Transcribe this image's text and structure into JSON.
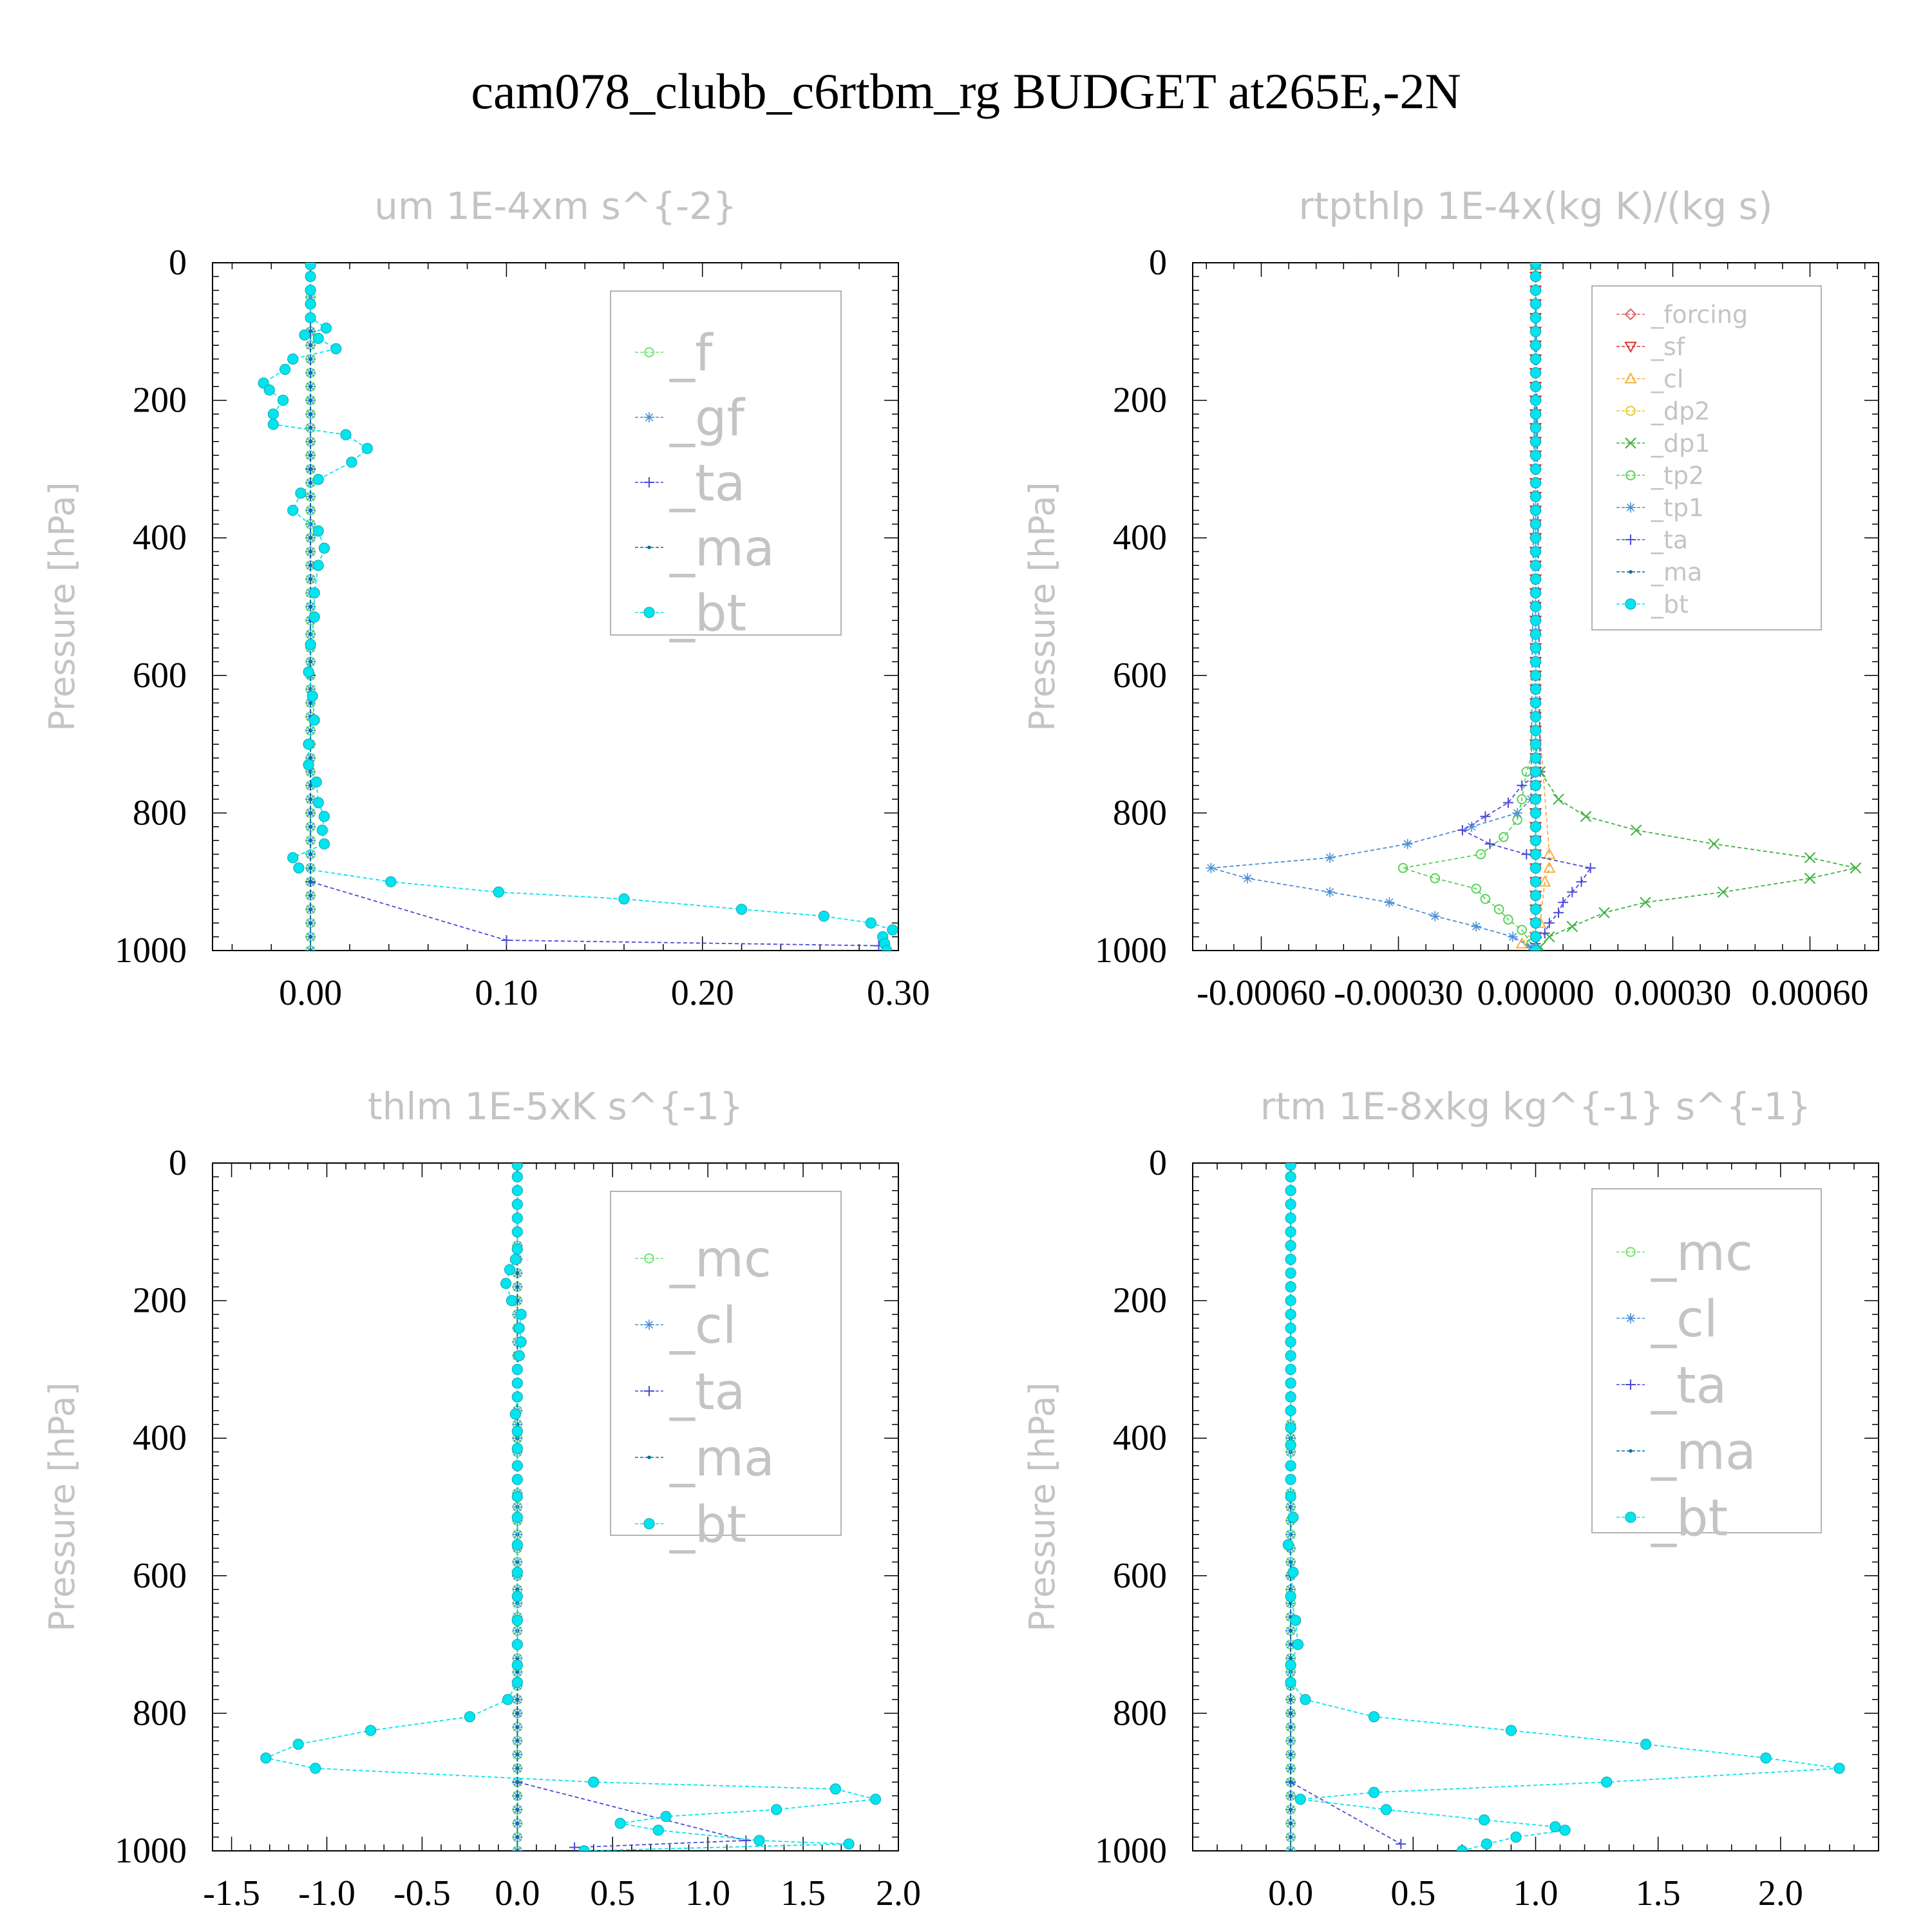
{
  "figure_title": "cam078_clubb_c6rtbm_rg  BUDGET at265E,-2N",
  "chart_data": [
    {
      "type": "line",
      "title": "um  1E-4xm s^{-2}",
      "ylabel": "Pressure [hPa]",
      "xlim": [
        -0.05,
        0.3
      ],
      "ylim": [
        1000,
        0
      ],
      "y_inverted": true,
      "xticks": [
        0.0,
        0.1,
        0.2,
        0.3
      ],
      "xtick_labels": [
        "0.00",
        "0.10",
        "0.20",
        "0.30"
      ],
      "yticks": [
        0,
        200,
        400,
        600,
        800,
        1000
      ],
      "ytick_labels": [
        "0",
        "200",
        "400",
        "600",
        "800",
        "1000"
      ],
      "legend_position": "top-right",
      "series": [
        {
          "name": "_f",
          "color": "#6fe36f",
          "marker": "circle-open",
          "pressure": [
            3,
            50,
            100,
            200,
            300,
            400,
            500,
            600,
            700,
            800,
            900,
            1000
          ],
          "values": [
            0,
            0,
            0,
            0,
            0,
            0,
            0,
            0,
            0,
            0,
            0,
            0
          ]
        },
        {
          "name": "_gf",
          "color": "#4a8fd6",
          "marker": "asterisk",
          "pressure": [
            3,
            50,
            100,
            200,
            300,
            400,
            500,
            600,
            700,
            800,
            900,
            1000
          ],
          "values": [
            0,
            0,
            0,
            0,
            0,
            0,
            0,
            0,
            0,
            0,
            0,
            0
          ]
        },
        {
          "name": "_ta",
          "color": "#4a4ad6",
          "marker": "plus",
          "pressure": [
            3,
            100,
            300,
            600,
            900,
            985,
            993
          ],
          "values": [
            0,
            0,
            0,
            0,
            0,
            0.1,
            0.29
          ]
        },
        {
          "name": "_ma",
          "color": "#0070a0",
          "marker": "dot",
          "pressure": [
            3,
            100,
            300,
            600,
            900,
            1000
          ],
          "values": [
            0,
            0,
            0,
            0,
            0,
            0
          ]
        },
        {
          "name": "_bt",
          "color": "#00e5ee",
          "marker": "circle-filled",
          "pressure": [
            3,
            20,
            40,
            60,
            80,
            95,
            105,
            110,
            125,
            140,
            155,
            175,
            185,
            200,
            220,
            235,
            250,
            270,
            290,
            315,
            335,
            360,
            390,
            415,
            440,
            480,
            515,
            555,
            595,
            630,
            665,
            700,
            730,
            755,
            785,
            805,
            825,
            845,
            865,
            880,
            900,
            915,
            925,
            940,
            950,
            960,
            970,
            980,
            990,
            1000
          ],
          "values": [
            0,
            0,
            0,
            0,
            0,
            0.008,
            -0.003,
            0.004,
            0.013,
            -0.009,
            -0.013,
            -0.024,
            -0.021,
            -0.014,
            -0.019,
            -0.019,
            0.018,
            0.029,
            0.021,
            0.004,
            -0.005,
            -0.009,
            0.004,
            0.007,
            0.004,
            0.002,
            0.002,
            0.0,
            -0.001,
            0.001,
            0.002,
            -0.001,
            -0.001,
            0.003,
            0.004,
            0.007,
            0.006,
            0.007,
            -0.009,
            -0.006,
            0.041,
            0.096,
            0.16,
            0.22,
            0.262,
            0.286,
            0.297,
            0.292,
            0.293,
            0.294
          ]
        }
      ]
    },
    {
      "type": "line",
      "title": "rtpthlp  1E-4x(kg K)/(kg s)",
      "ylabel": "Pressure [hPa]",
      "xlim": [
        -0.00075,
        0.00075
      ],
      "ylim": [
        1000,
        0
      ],
      "y_inverted": true,
      "xticks": [
        -0.0006,
        -0.0003,
        0.0,
        0.0003,
        0.0006
      ],
      "xtick_labels": [
        "-0.00060",
        "-0.00030",
        "0.00000",
        "0.00030",
        "0.00060"
      ],
      "yticks": [
        0,
        200,
        400,
        600,
        800,
        1000
      ],
      "ytick_labels": [
        "0",
        "200",
        "400",
        "600",
        "800",
        "1000"
      ],
      "legend_position": "top-right",
      "series": [
        {
          "name": "_forcing",
          "color": "#e06060",
          "marker": "diamond-open",
          "pressure": [
            3,
            200,
            400,
            600,
            800,
            1000
          ],
          "values": [
            0,
            0,
            0,
            0,
            0,
            0
          ]
        },
        {
          "name": "_sf",
          "color": "#e03030",
          "marker": "triangle-down",
          "pressure": [
            3,
            200,
            400,
            600,
            800,
            1000
          ],
          "values": [
            0,
            0,
            0,
            0,
            0,
            0
          ]
        },
        {
          "name": "_cl",
          "color": "#f5b040",
          "marker": "triangle-up",
          "pressure": [
            3,
            600,
            860,
            880,
            900,
            960,
            990,
            1000
          ],
          "values": [
            0,
            0,
            3e-05,
            3e-05,
            2e-05,
            1e-05,
            -3e-05,
            0
          ]
        },
        {
          "name": "_dp2",
          "color": "#e8c830",
          "marker": "circle-open",
          "pressure": [
            3,
            600,
            900,
            1000
          ],
          "values": [
            0,
            0,
            0,
            0
          ]
        },
        {
          "name": "_dp1",
          "color": "#3cb33c",
          "marker": "x",
          "pressure": [
            3,
            700,
            740,
            780,
            805,
            825,
            845,
            865,
            880,
            895,
            915,
            930,
            945,
            965,
            980,
            995
          ],
          "values": [
            0,
            0,
            1e-05,
            5e-05,
            0.00011,
            0.00022,
            0.00039,
            0.0006,
            0.0007,
            0.0006,
            0.00041,
            0.00024,
            0.00015,
            8e-05,
            3e-05,
            1e-05
          ]
        },
        {
          "name": "_tp2",
          "color": "#55d455",
          "marker": "circle-open",
          "pressure": [
            3,
            700,
            740,
            780,
            810,
            835,
            860,
            880,
            895,
            910,
            925,
            940,
            955,
            970,
            990
          ],
          "values": [
            0,
            0,
            -2e-05,
            -3e-05,
            -4e-05,
            -7e-05,
            -0.00012,
            -0.00029,
            -0.00022,
            -0.00013,
            -0.00011,
            -8e-05,
            -6e-05,
            -3e-05,
            -1e-05
          ]
        },
        {
          "name": "_tp1",
          "color": "#4a8fd6",
          "marker": "asterisk",
          "pressure": [
            3,
            780,
            800,
            820,
            845,
            865,
            880,
            895,
            915,
            930,
            950,
            965,
            980,
            995
          ],
          "values": [
            0,
            -1e-05,
            -4e-05,
            -0.00014,
            -0.00028,
            -0.00045,
            -0.00071,
            -0.00063,
            -0.00045,
            -0.00032,
            -0.00022,
            -0.00013,
            -5e-05,
            -1e-05
          ]
        },
        {
          "name": "_ta",
          "color": "#4a4ad6",
          "marker": "plus",
          "pressure": [
            3,
            740,
            760,
            785,
            805,
            825,
            845,
            860,
            880,
            900,
            915,
            930,
            945,
            960,
            975,
            990
          ],
          "values": [
            0,
            1e-05,
            -3e-05,
            -6e-05,
            -0.00011,
            -0.00016,
            -0.0001,
            -2e-05,
            0.00012,
            0.0001,
            8e-05,
            6e-05,
            5e-05,
            3e-05,
            2e-05,
            0
          ]
        },
        {
          "name": "_ma",
          "color": "#0070a0",
          "marker": "dot",
          "pressure": [
            3,
            400,
            800,
            1000
          ],
          "values": [
            0,
            0,
            0,
            0
          ]
        },
        {
          "name": "_bt",
          "color": "#00e5ee",
          "marker": "circle-filled",
          "pressure": [
            3,
            20,
            40,
            60,
            80,
            100,
            120,
            140,
            160,
            180,
            200,
            220,
            240,
            260,
            280,
            300,
            320,
            340,
            360,
            380,
            400,
            420,
            440,
            460,
            480,
            500,
            520,
            540,
            560,
            580,
            600,
            620,
            640,
            660,
            680,
            700,
            720,
            740,
            760,
            780,
            800,
            820,
            840,
            860,
            880,
            900,
            920,
            940,
            960,
            980,
            1000
          ],
          "values": [
            0,
            0,
            0,
            0,
            0,
            0,
            0,
            0,
            0,
            0,
            0,
            0,
            0,
            0,
            0,
            0,
            0,
            0,
            0,
            0,
            0,
            0,
            0,
            0,
            0,
            0,
            0,
            0,
            0,
            0,
            0,
            0,
            0,
            0,
            0,
            0,
            0,
            0,
            0,
            0,
            0,
            0,
            0,
            0,
            0,
            0,
            0,
            0,
            0,
            0,
            0
          ]
        }
      ]
    },
    {
      "type": "line",
      "title": "thlm  1E-5xK s^{-1}",
      "ylabel": "Pressure [hPa]",
      "xlim": [
        -1.6,
        2.0
      ],
      "ylim": [
        1000,
        0
      ],
      "y_inverted": true,
      "xticks": [
        -1.5,
        -1.0,
        -0.5,
        0.0,
        0.5,
        1.0,
        1.5,
        2.0
      ],
      "xtick_labels": [
        "-1.5",
        "-1.0",
        "-0.5",
        "0.0",
        "0.5",
        "1.0",
        "1.5",
        "2.0"
      ],
      "yticks": [
        0,
        200,
        400,
        600,
        800,
        1000
      ],
      "ytick_labels": [
        "0",
        "200",
        "400",
        "600",
        "800",
        "1000"
      ],
      "legend_position": "top-right",
      "series": [
        {
          "name": "_mc",
          "color": "#6fe36f",
          "marker": "circle-open",
          "pressure": [
            3,
            200,
            400,
            600,
            800,
            1000
          ],
          "values": [
            0,
            0,
            0,
            0,
            0,
            0
          ]
        },
        {
          "name": "_cl",
          "color": "#4a8fd6",
          "marker": "asterisk",
          "pressure": [
            3,
            200,
            400,
            600,
            800,
            1000
          ],
          "values": [
            0,
            0,
            0,
            0,
            0,
            0
          ]
        },
        {
          "name": "_ta",
          "color": "#4a4ad6",
          "marker": "plus",
          "pressure": [
            3,
            600,
            900,
            985,
            995
          ],
          "values": [
            0,
            0,
            0,
            1.2,
            0.3
          ]
        },
        {
          "name": "_ma",
          "color": "#0070a0",
          "marker": "dot",
          "pressure": [
            3,
            400,
            800,
            1000
          ],
          "values": [
            0,
            0,
            0,
            0
          ]
        },
        {
          "name": "_bt",
          "color": "#00e5ee",
          "marker": "circle-filled",
          "pressure": [
            3,
            20,
            40,
            60,
            80,
            100,
            125,
            140,
            155,
            175,
            200,
            220,
            240,
            260,
            280,
            300,
            320,
            340,
            365,
            390,
            415,
            440,
            460,
            485,
            515,
            555,
            595,
            630,
            665,
            700,
            730,
            755,
            780,
            805,
            825,
            845,
            865,
            880,
            900,
            910,
            925,
            940,
            950,
            960,
            970,
            985,
            990,
            1000
          ],
          "values": [
            0,
            0,
            0,
            0,
            0,
            0,
            0,
            -0.01,
            -0.04,
            -0.06,
            -0.03,
            0.02,
            0.01,
            0.02,
            0.01,
            0.0,
            0.0,
            0.0,
            -0.01,
            0.0,
            0.0,
            0.0,
            0.0,
            0.0,
            0.0,
            0.0,
            0.0,
            0.0,
            0.0,
            0.0,
            0.0,
            0.0,
            -0.05,
            -0.25,
            -0.77,
            -1.15,
            -1.32,
            -1.06,
            0.4,
            1.67,
            1.88,
            1.36,
            0.78,
            0.54,
            0.74,
            1.27,
            1.74,
            0.35
          ]
        }
      ]
    },
    {
      "type": "line",
      "title": "rtm  1E-8xkg kg^{-1} s^{-1}",
      "ylabel": "Pressure [hPa]",
      "xlim": [
        -0.4,
        2.4
      ],
      "ylim": [
        1000,
        0
      ],
      "y_inverted": true,
      "xticks": [
        0.0,
        0.5,
        1.0,
        1.5,
        2.0
      ],
      "xtick_labels": [
        "0.0",
        "0.5",
        "1.0",
        "1.5",
        "2.0"
      ],
      "yticks": [
        0,
        200,
        400,
        600,
        800,
        1000
      ],
      "ytick_labels": [
        "0",
        "200",
        "400",
        "600",
        "800",
        "1000"
      ],
      "legend_position": "top-right",
      "series": [
        {
          "name": "_mc",
          "color": "#6fe36f",
          "marker": "circle-open",
          "pressure": [
            3,
            200,
            400,
            600,
            800,
            1000
          ],
          "values": [
            0,
            0,
            0,
            0,
            0,
            0
          ]
        },
        {
          "name": "_cl",
          "color": "#4a8fd6",
          "marker": "asterisk",
          "pressure": [
            3,
            200,
            400,
            600,
            800,
            1000
          ],
          "values": [
            0,
            0,
            0,
            0,
            0,
            0
          ]
        },
        {
          "name": "_ta",
          "color": "#4a4ad6",
          "marker": "plus",
          "pressure": [
            3,
            600,
            900,
            990
          ],
          "values": [
            0,
            0,
            0,
            0.45
          ]
        },
        {
          "name": "_ma",
          "color": "#0070a0",
          "marker": "dot",
          "pressure": [
            3,
            400,
            800,
            1000
          ],
          "values": [
            0,
            0,
            0,
            0
          ]
        },
        {
          "name": "_bt",
          "color": "#00e5ee",
          "marker": "circle-filled",
          "pressure": [
            3,
            20,
            40,
            60,
            80,
            100,
            120,
            140,
            160,
            180,
            200,
            220,
            240,
            260,
            280,
            300,
            320,
            340,
            360,
            385,
            410,
            440,
            460,
            485,
            515,
            555,
            595,
            630,
            665,
            700,
            730,
            755,
            780,
            805,
            825,
            845,
            865,
            880,
            900,
            915,
            925,
            940,
            955,
            965,
            970,
            980,
            990,
            1000
          ],
          "values": [
            0,
            0,
            0,
            0,
            0,
            0,
            0,
            0,
            0,
            0,
            0,
            0,
            0,
            0,
            0,
            0,
            0,
            0,
            0,
            0,
            0,
            0,
            0,
            0,
            0.01,
            -0.01,
            0.01,
            0.0,
            0.02,
            0.03,
            0.0,
            0.0,
            0.06,
            0.34,
            0.9,
            1.45,
            1.94,
            2.24,
            1.29,
            0.34,
            0.04,
            0.39,
            0.79,
            1.08,
            1.12,
            0.92,
            0.8,
            0.7
          ]
        }
      ]
    }
  ]
}
